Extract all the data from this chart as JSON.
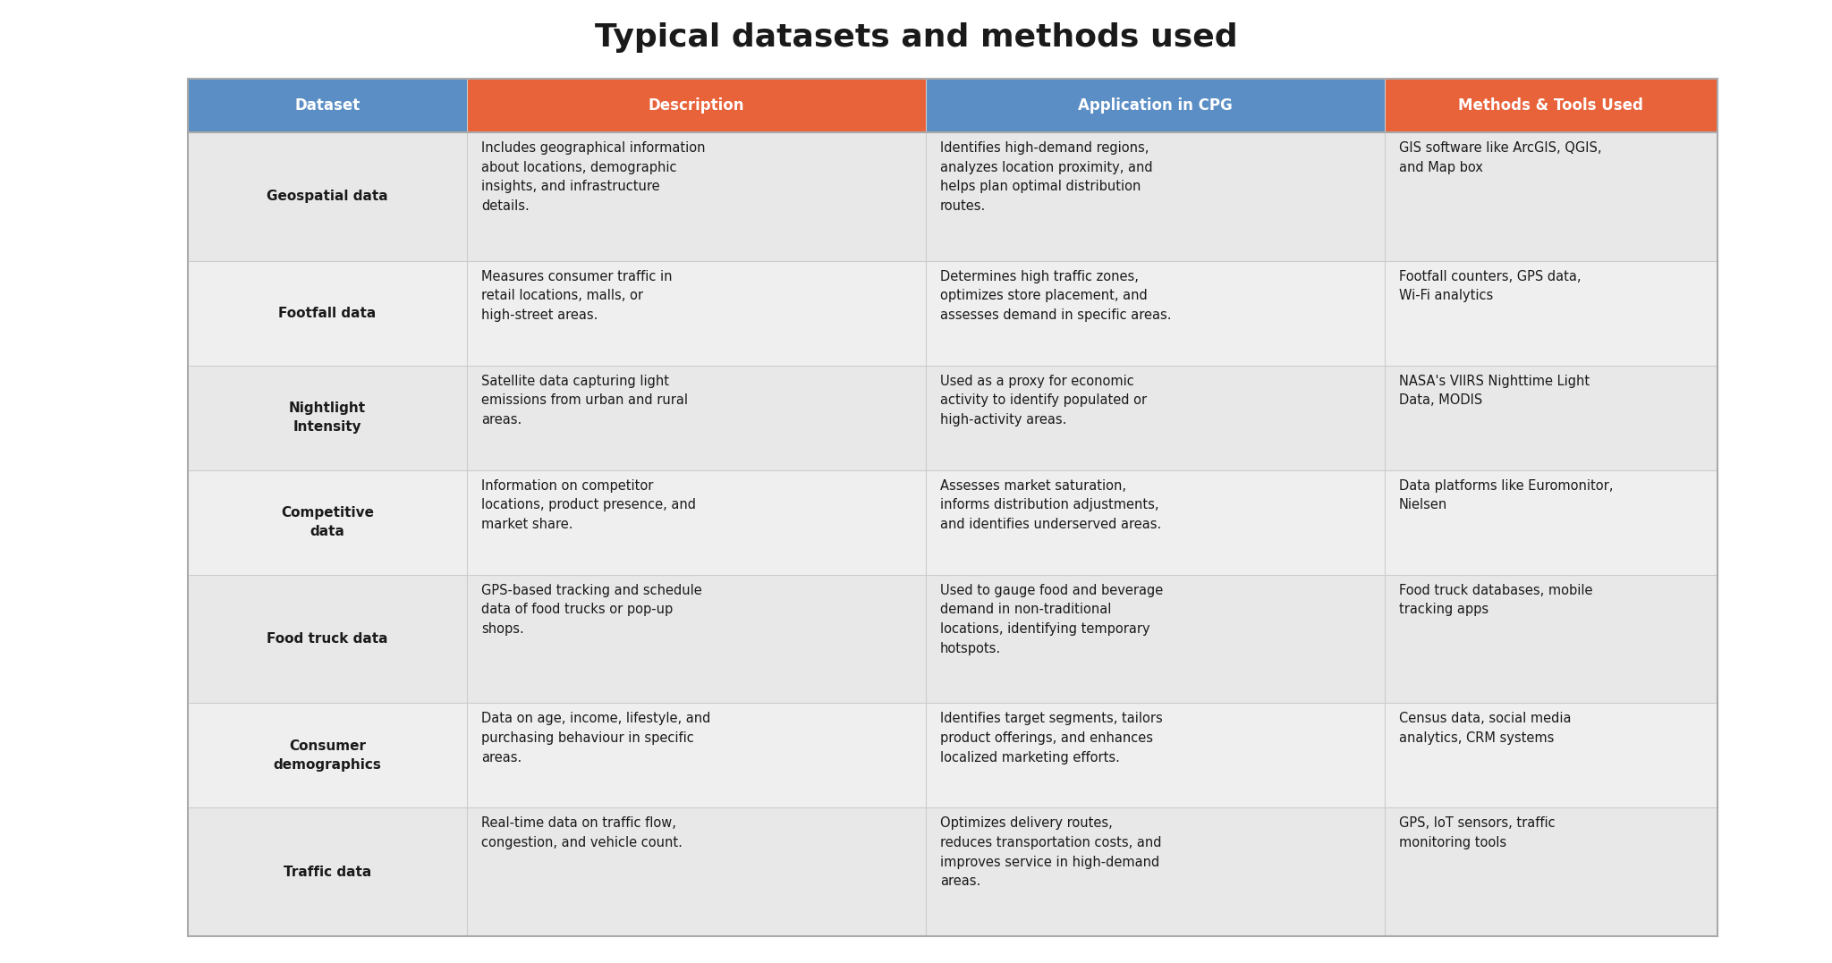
{
  "title": "Typical datasets and methods used",
  "title_fontsize": 26,
  "title_fontweight": "bold",
  "background_color": "#ffffff",
  "header_colors": [
    "#5b8ec4",
    "#e8623a",
    "#5b8ec4",
    "#e8623a"
  ],
  "header_text_color": "#ffffff",
  "row_bg_colors": [
    "#e8e8e8",
    "#efefef"
  ],
  "col_headers": [
    "Dataset",
    "Description",
    "Application in CPG",
    "Methods & Tools Used"
  ],
  "rows": [
    {
      "dataset": "Geospatial data",
      "description": "Includes geographical information\nabout locations, demographic\ninsights, and infrastructure\ndetails.",
      "application": "Identifies high-demand regions,\nanalyzes location proximity, and\nhelps plan optimal distribution\nroutes.",
      "methods": "GIS software like ArcGIS, QGIS,\nand Map box"
    },
    {
      "dataset": "Footfall data",
      "description": "Measures consumer traffic in\nretail locations, malls, or\nhigh-street areas.",
      "application": "Determines high traffic zones,\noptimizes store placement, and\nassesses demand in specific areas.",
      "methods": "Footfall counters, GPS data,\nWi-Fi analytics"
    },
    {
      "dataset": "Nightlight\nIntensity",
      "description": "Satellite data capturing light\nemissions from urban and rural\nareas.",
      "application": "Used as a proxy for economic\nactivity to identify populated or\nhigh-activity areas.",
      "methods": "NASA's VIIRS Nighttime Light\nData, MODIS"
    },
    {
      "dataset": "Competitive\ndata",
      "description": "Information on competitor\nlocations, product presence, and\nmarket share.",
      "application": "Assesses market saturation,\ninforms distribution adjustments,\nand identifies underserved areas.",
      "methods": "Data platforms like Euromonitor,\nNielsen"
    },
    {
      "dataset": "Food truck data",
      "description": "GPS-based tracking and schedule\ndata of food trucks or pop-up\nshops.",
      "application": "Used to gauge food and beverage\ndemand in non-traditional\nlocations, identifying temporary\nhotspots.",
      "methods": "Food truck databases, mobile\ntracking apps"
    },
    {
      "dataset": "Consumer\ndemographics",
      "description": "Data on age, income, lifestyle, and\npurchasing behaviour in specific\nareas.",
      "application": "Identifies target segments, tailors\nproduct offerings, and enhances\nlocalized marketing efforts.",
      "methods": "Census data, social media\nanalytics, CRM systems"
    },
    {
      "dataset": "Traffic data",
      "description": "Real-time data on traffic flow,\ncongestion, and vehicle count.",
      "application": "Optimizes delivery routes,\nreduces transportation costs, and\nimproves service in high-demand\nareas.",
      "methods": "GPS, IoT sensors, traffic\nmonitoring tools"
    }
  ]
}
